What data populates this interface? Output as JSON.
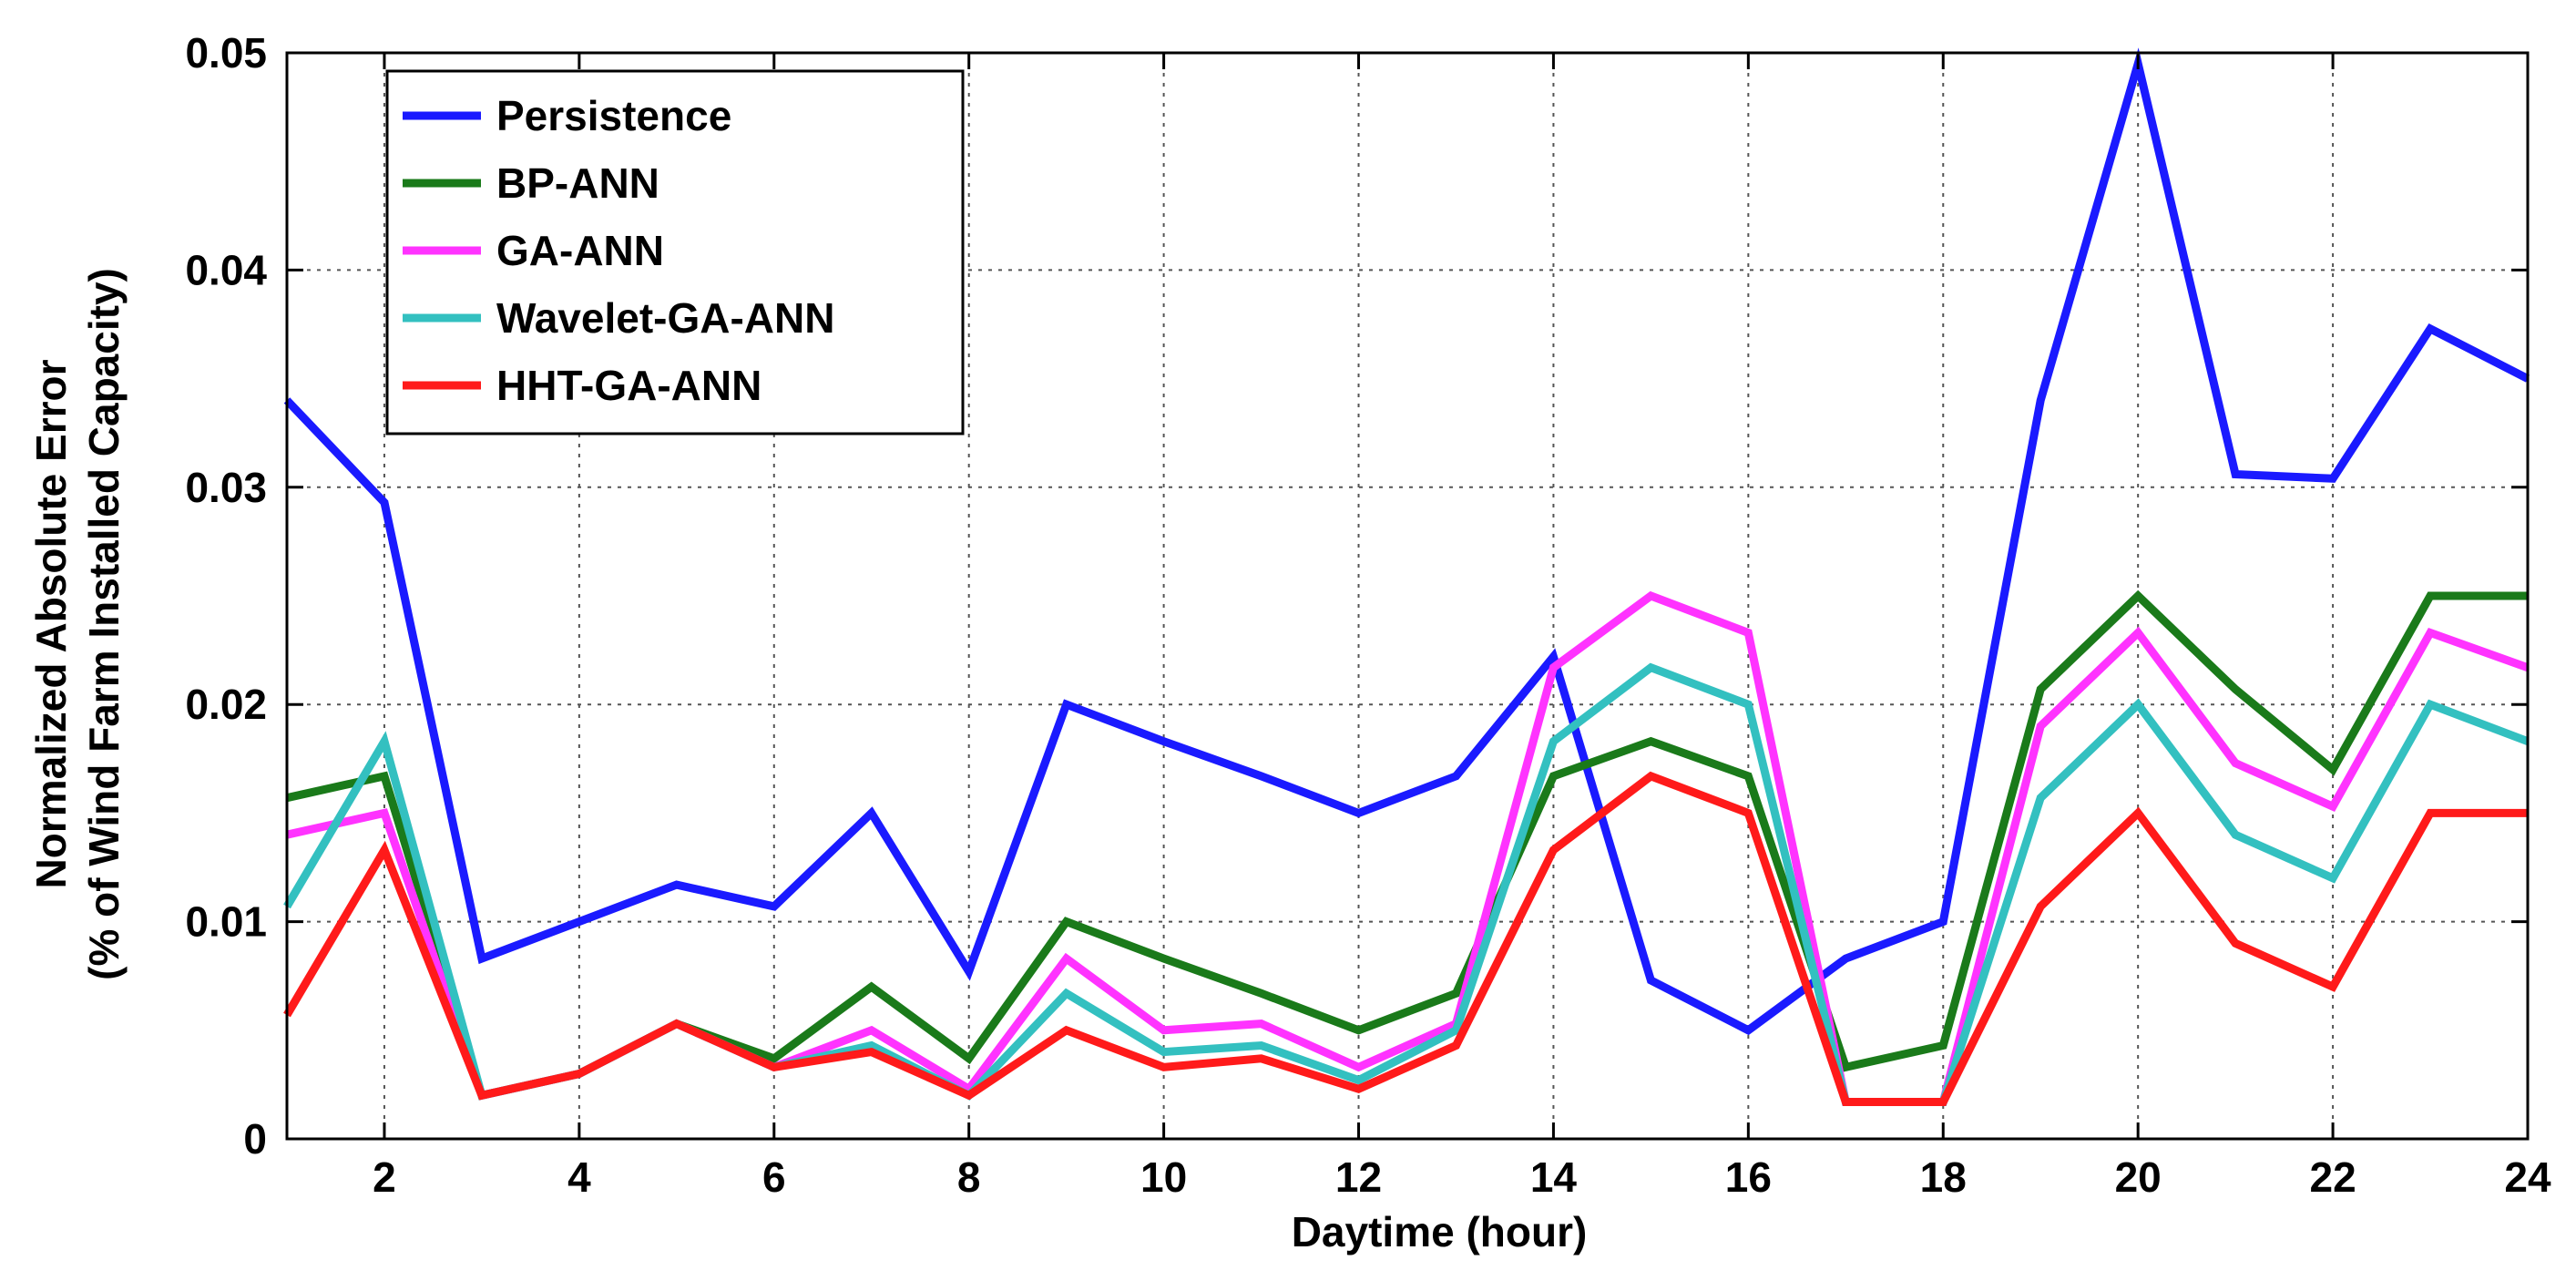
{
  "chart_data": {
    "type": "line",
    "title": "",
    "xlabel": "Daytime (hour)",
    "ylabel_line1": "Normalized Absolute Error",
    "ylabel_line2": "(% of Wind Farm Installed Capacity)",
    "xlim": [
      1,
      24
    ],
    "ylim": [
      0,
      0.05
    ],
    "x": [
      1,
      2,
      3,
      4,
      5,
      6,
      7,
      8,
      9,
      10,
      11,
      12,
      13,
      14,
      15,
      16,
      17,
      18,
      19,
      20,
      21,
      22,
      23,
      24
    ],
    "x_ticks": [
      2,
      4,
      6,
      8,
      10,
      12,
      14,
      16,
      18,
      20,
      22,
      24
    ],
    "x_tick_labels": [
      "2",
      "4",
      "6",
      "8",
      "10",
      "12",
      "14",
      "16",
      "18",
      "20",
      "22",
      "24"
    ],
    "y_ticks": [
      0,
      0.01,
      0.02,
      0.03,
      0.04,
      0.05
    ],
    "y_tick_labels": [
      "0",
      "0.01",
      "0.02",
      "0.03",
      "0.04",
      "0.05"
    ],
    "grid": true,
    "legend_position": "top-left",
    "series": [
      {
        "name": "Persistence",
        "color": "#1a1aff",
        "values": [
          0.034,
          0.0293,
          0.0083,
          0.01,
          0.0117,
          0.0107,
          0.015,
          0.0077,
          0.02,
          0.0183,
          0.0167,
          0.015,
          0.0167,
          0.0222,
          0.0073,
          0.005,
          0.0083,
          0.01,
          0.034,
          0.0495,
          0.0306,
          0.0304,
          0.0373,
          0.035
        ]
      },
      {
        "name": "BP-ANN",
        "color": "#1a7a1a",
        "values": [
          0.0157,
          0.0167,
          0.002,
          0.003,
          0.0053,
          0.0037,
          0.007,
          0.0037,
          0.01,
          0.0083,
          0.0067,
          0.005,
          0.0067,
          0.0167,
          0.0183,
          0.0167,
          0.0033,
          0.0043,
          0.0207,
          0.025,
          0.0207,
          0.017,
          0.025,
          0.025
        ]
      },
      {
        "name": "GA-ANN",
        "color": "#ff33ff",
        "values": [
          0.014,
          0.015,
          0.002,
          0.003,
          0.0053,
          0.0033,
          0.005,
          0.0023,
          0.0083,
          0.005,
          0.0053,
          0.0033,
          0.0053,
          0.0217,
          0.025,
          0.0233,
          0.0017,
          0.0017,
          0.019,
          0.0233,
          0.0173,
          0.0153,
          0.0233,
          0.0217
        ]
      },
      {
        "name": "Wavelet-GA-ANN",
        "color": "#33c0c0",
        "values": [
          0.0107,
          0.0183,
          0.002,
          0.003,
          0.0053,
          0.0033,
          0.0043,
          0.002,
          0.0067,
          0.004,
          0.0043,
          0.0027,
          0.005,
          0.0183,
          0.0217,
          0.02,
          0.0017,
          0.0017,
          0.0157,
          0.02,
          0.014,
          0.012,
          0.02,
          0.0183
        ]
      },
      {
        "name": "HHT-GA-ANN",
        "color": "#ff1a1a",
        "values": [
          0.0057,
          0.0133,
          0.002,
          0.003,
          0.0053,
          0.0033,
          0.004,
          0.002,
          0.005,
          0.0033,
          0.0037,
          0.0023,
          0.0043,
          0.0133,
          0.0167,
          0.015,
          0.0017,
          0.0017,
          0.0107,
          0.015,
          0.009,
          0.007,
          0.015,
          0.015
        ]
      }
    ]
  }
}
